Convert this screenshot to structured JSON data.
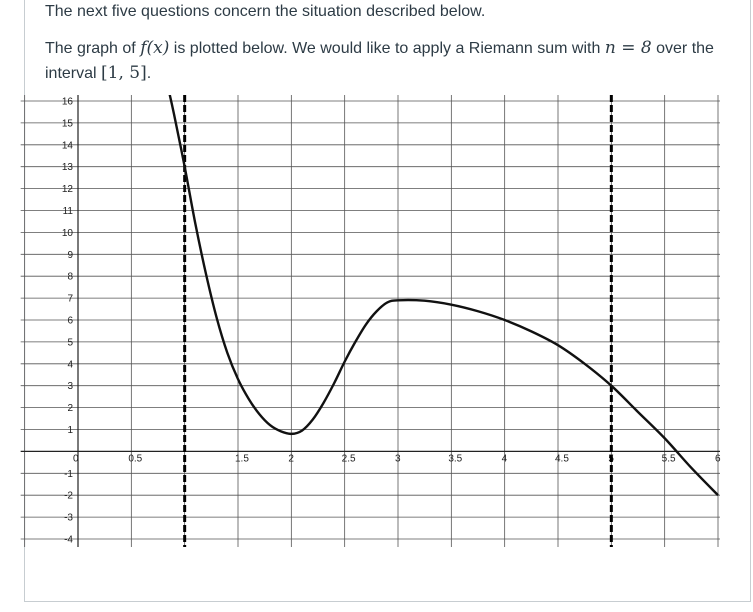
{
  "intro": "The next five questions concern the situation described below.",
  "question": {
    "text_before": "The graph of",
    "fx": "f(x)",
    "text_middle": "is plotted below. We would like to apply a Riemann sum with",
    "n_eq": "n = 8",
    "text_after": "over the interval",
    "interval": "[1, 5]",
    "period": "."
  },
  "chart_data": {
    "type": "line",
    "xlim": [
      -0.5,
      6
    ],
    "ylim": [
      -4,
      16
    ],
    "x_ticks": [
      0,
      0.5,
      1,
      1.5,
      2,
      2.5,
      3,
      3.5,
      4,
      4.5,
      5,
      5.5,
      6
    ],
    "x_tick_labels": [
      "0",
      "0.5",
      "",
      "1.5",
      "2",
      "2.5",
      "3",
      "3.5",
      "4",
      "4.5",
      "5",
      "5.5",
      "6"
    ],
    "y_ticks": [
      -4,
      -3,
      -2,
      -1,
      1,
      2,
      3,
      4,
      5,
      6,
      7,
      8,
      9,
      10,
      11,
      12,
      13,
      14,
      15,
      16
    ],
    "y_tick_labels": [
      "-4",
      "-3",
      "-2",
      "-1",
      "1",
      "2",
      "3",
      "4",
      "5",
      "6",
      "7",
      "8",
      "9",
      "10",
      "11",
      "12",
      "13",
      "14",
      "15",
      "16"
    ],
    "vertical_dashed_lines": [
      1,
      5
    ],
    "grid": true,
    "curve": {
      "x": [
        0.85,
        0.9,
        1.0,
        1.1,
        1.2,
        1.3,
        1.4,
        1.5,
        1.6,
        1.7,
        1.8,
        1.9,
        2.0,
        2.1,
        2.2,
        2.3,
        2.4,
        2.5,
        2.6,
        2.7,
        2.8,
        2.9,
        3.0,
        3.25,
        3.5,
        3.75,
        4.0,
        4.25,
        4.5,
        4.75,
        5.0,
        5.25,
        5.5,
        5.75,
        6.0
      ],
      "y": [
        16.5,
        15.4,
        13.0,
        10.4,
        8.1,
        6.1,
        4.5,
        3.3,
        2.4,
        1.7,
        1.2,
        0.92,
        0.8,
        0.95,
        1.45,
        2.2,
        3.1,
        4.1,
        5.0,
        5.8,
        6.4,
        6.8,
        6.9,
        6.88,
        6.7,
        6.4,
        6.0,
        5.48,
        4.85,
        4.0,
        3.0,
        1.8,
        0.6,
        -0.75,
        -2.0
      ]
    }
  }
}
